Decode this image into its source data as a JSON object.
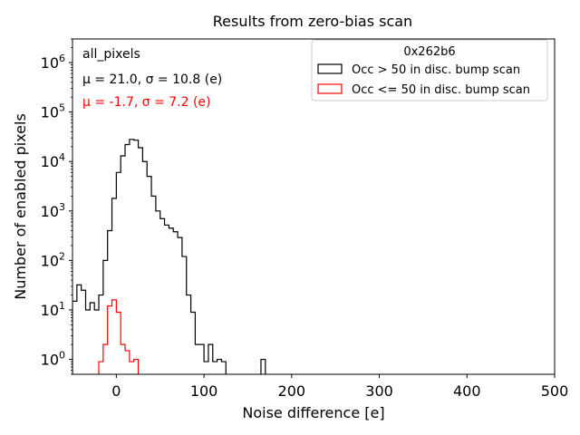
{
  "chart_data": {
    "type": "histogram",
    "title": "Results from zero-bias scan",
    "xlabel": "Noise difference [e]",
    "ylabel": "Number of enabled pixels",
    "xlim": [
      -50,
      500
    ],
    "ylim": [
      0.5,
      3000000
    ],
    "yscale": "log",
    "grid": false,
    "xticks": [
      0,
      100,
      200,
      300,
      400,
      500
    ],
    "xtick_labels": [
      "0",
      "100",
      "200",
      "300",
      "400",
      "500"
    ],
    "ytick_labels": [
      {
        "mantissa": "10",
        "exp": "0",
        "value": 1
      },
      {
        "mantissa": "10",
        "exp": "1",
        "value": 10
      },
      {
        "mantissa": "10",
        "exp": "2",
        "value": 100
      },
      {
        "mantissa": "10",
        "exp": "3",
        "value": 1000
      },
      {
        "mantissa": "10",
        "exp": "4",
        "value": 10000
      },
      {
        "mantissa": "10",
        "exp": "5",
        "value": 100000
      },
      {
        "mantissa": "10",
        "exp": "6",
        "value": 1000000
      }
    ],
    "bin_width": 5,
    "annotations": {
      "label": "all_pixels",
      "stats": [
        {
          "text": "μ = 21.0, σ = 10.8 (e)",
          "color": "#000000"
        },
        {
          "text": "μ = -1.7, σ = 7.2 (e)",
          "color": "#ff0000"
        }
      ]
    },
    "legend": {
      "title": "0x262b6",
      "position": "top-right"
    },
    "series": [
      {
        "name": "Occ > 50 in disc. bump scan",
        "color": "#000000",
        "bins": [
          [
            -50,
            15
          ],
          [
            -45,
            32
          ],
          [
            -40,
            25
          ],
          [
            -35,
            10
          ],
          [
            -30,
            14
          ],
          [
            -25,
            10
          ],
          [
            -20,
            20
          ],
          [
            -15,
            100
          ],
          [
            -10,
            400
          ],
          [
            -5,
            1800
          ],
          [
            0,
            6000
          ],
          [
            5,
            13000
          ],
          [
            10,
            22000
          ],
          [
            15,
            28000
          ],
          [
            20,
            27000
          ],
          [
            25,
            19000
          ],
          [
            30,
            10000
          ],
          [
            35,
            5000
          ],
          [
            40,
            2000
          ],
          [
            45,
            1000
          ],
          [
            50,
            700
          ],
          [
            55,
            520
          ],
          [
            60,
            450
          ],
          [
            65,
            380
          ],
          [
            70,
            290
          ],
          [
            75,
            120
          ],
          [
            80,
            20
          ],
          [
            85,
            9
          ],
          [
            90,
            2
          ],
          [
            95,
            2
          ],
          [
            100,
            0.9
          ],
          [
            105,
            2
          ],
          [
            110,
            0.9
          ],
          [
            115,
            1
          ],
          [
            120,
            0.9
          ],
          [
            165,
            1
          ]
        ]
      },
      {
        "name": "Occ <= 50 in disc. bump scan",
        "color": "#ff0000",
        "bins": [
          [
            -20,
            0.9
          ],
          [
            -15,
            2
          ],
          [
            -10,
            12
          ],
          [
            -5,
            16
          ],
          [
            0,
            9
          ],
          [
            5,
            2
          ],
          [
            10,
            1.5
          ],
          [
            15,
            0.9
          ],
          [
            20,
            1
          ]
        ]
      }
    ]
  }
}
